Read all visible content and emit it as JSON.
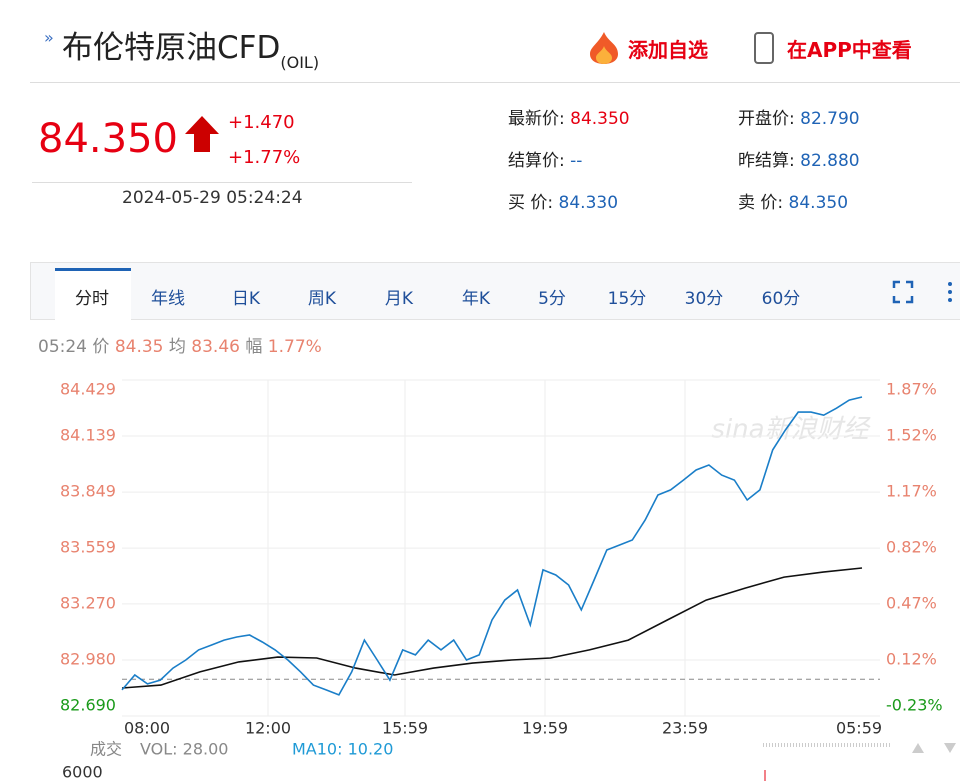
{
  "header": {
    "title": "布伦特原油CFD",
    "symbol": "(OIL)",
    "actions": [
      "添加自选",
      "在APP中查看"
    ]
  },
  "quote": {
    "price": "84.350",
    "change": "+1.470",
    "change_pct": "+1.77%",
    "time": "2024-05-29 05:24:24",
    "fields": [
      {
        "label": "最新价:",
        "value": "84.350"
      },
      {
        "label": "开盘价:",
        "value": "82.790"
      },
      {
        "label": "结算价:",
        "value": "--"
      },
      {
        "label": "昨结算:",
        "value": "82.880"
      },
      {
        "label": "买 价:",
        "value": "84.330"
      },
      {
        "label": "卖 价:",
        "value": "84.350"
      }
    ]
  },
  "tabs": [
    "分时",
    "年线",
    "日K",
    "周K",
    "月K",
    "年K",
    "5分",
    "15分",
    "30分",
    "60分"
  ],
  "chart": {
    "info": {
      "time": "05:24",
      "price_label": "价",
      "price": "84.35",
      "avg_label": "均",
      "avg": "83.46",
      "amp_label": "幅",
      "amp": "1.77%"
    },
    "watermark": "sina新浪财经",
    "ylim": [
      82.69,
      84.429
    ],
    "yticks": [
      84.429,
      84.139,
      83.849,
      83.559,
      {
        "value": 83.27,
        "label": "83.270"
      },
      {
        "value": 82.98,
        "label": "82.980"
      },
      {
        "value": 82.69,
        "label": "82.690"
      }
    ],
    "y2lim": [
      -0.23,
      1.87
    ],
    "y2ticks": [
      {
        "value": 1.87,
        "label": "1.87%"
      },
      {
        "value": 1.52,
        "label": "1.52%"
      },
      {
        "value": 1.17,
        "label": "1.17%"
      },
      {
        "value": 0.82,
        "label": "0.82%"
      },
      {
        "value": 0.47,
        "label": "0.47%"
      },
      {
        "value": 0.12,
        "label": "0.12%"
      },
      {
        "value": -0.23,
        "label": "-0.23%"
      }
    ],
    "xticks": [
      "08:00",
      "12:00",
      "15:59",
      "19:59",
      "23:59",
      "05:59"
    ],
    "prev_settle": 82.88,
    "price_values": [
      82.825,
      82.902,
      82.856,
      82.876,
      82.938,
      82.98,
      83.032,
      83.057,
      83.083,
      83.099,
      83.109,
      83.073,
      83.032,
      82.98,
      82.918,
      82.85,
      82.825,
      82.799,
      82.918,
      83.083,
      82.98,
      82.876,
      83.032,
      83.006,
      83.083,
      83.032,
      83.083,
      82.98,
      83.006,
      83.187,
      83.29,
      83.342,
      83.161,
      83.446,
      83.42,
      83.368,
      83.239,
      83.394,
      83.549,
      83.575,
      83.601,
      83.704,
      83.834,
      83.86,
      83.911,
      83.963,
      83.989,
      83.937,
      83.911,
      83.808,
      83.86,
      84.067,
      84.17,
      84.263,
      84.263,
      84.247,
      84.283,
      84.325,
      84.341
    ],
    "avg_values": [
      82.835,
      82.85,
      82.918,
      82.97,
      82.995,
      82.99,
      82.938,
      82.902,
      82.938,
      82.964,
      82.98,
      82.99,
      83.032,
      83.083,
      83.187,
      83.29,
      83.352,
      83.409,
      83.435,
      83.456
    ]
  },
  "volume": {
    "label": "成交",
    "vol": "VOL: 28.00",
    "ma": "MA10: 10.20",
    "ytick": "6000"
  }
}
